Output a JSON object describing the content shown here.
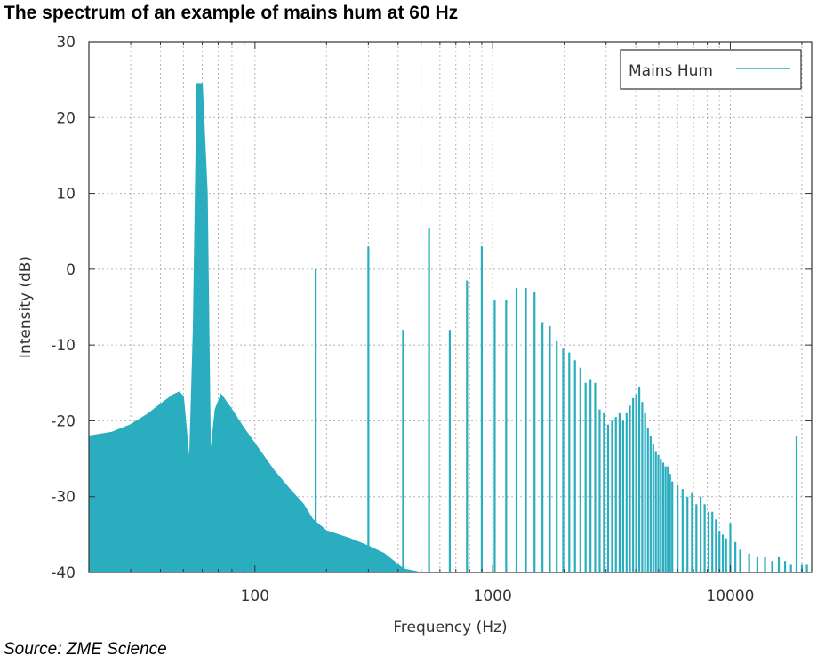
{
  "title": "The spectrum of an example of mains hum at 60 Hz",
  "source": "Source: ZME Science",
  "chart_data": {
    "type": "area",
    "xlabel": "Frequency (Hz)",
    "ylabel": "Intensity (dB)",
    "xscale": "log",
    "xlim": [
      20,
      22000
    ],
    "ylim": [
      -40,
      30
    ],
    "xticks": [
      100,
      1000,
      10000
    ],
    "xtick_labels": [
      "100",
      "1000",
      "10000"
    ],
    "yticks": [
      -40,
      -30,
      -20,
      -10,
      0,
      10,
      20,
      30
    ],
    "ytick_labels": [
      "-40",
      "-30",
      "-20",
      "-10",
      "0",
      "10",
      "20",
      "30"
    ],
    "grid": true,
    "legend_position": "top-right",
    "color": "#2aaebf",
    "series": [
      {
        "name": "Mains Hum",
        "baseline": [
          [
            20,
            -22
          ],
          [
            25,
            -21.5
          ],
          [
            30,
            -20.5
          ],
          [
            35,
            -19.2
          ],
          [
            40,
            -17.8
          ],
          [
            45,
            -16.6
          ],
          [
            48,
            -16.2
          ],
          [
            50,
            -16.8
          ],
          [
            53,
            -25.5
          ],
          [
            55,
            -8
          ],
          [
            57,
            24.5
          ],
          [
            60,
            24.5
          ],
          [
            63,
            10
          ],
          [
            65,
            -24.5
          ],
          [
            68,
            -18.5
          ],
          [
            72,
            -16.5
          ],
          [
            80,
            -18.5
          ],
          [
            90,
            -21
          ],
          [
            100,
            -23
          ],
          [
            120,
            -26.5
          ],
          [
            140,
            -29
          ],
          [
            160,
            -31
          ],
          [
            175,
            -33
          ],
          [
            200,
            -34.5
          ],
          [
            250,
            -35.5
          ],
          [
            300,
            -36.5
          ],
          [
            350,
            -37.5
          ],
          [
            420,
            -39.5
          ],
          [
            500,
            -40
          ],
          [
            22000,
            -40
          ]
        ],
        "peaks": [
          [
            180,
            0
          ],
          [
            300,
            3
          ],
          [
            420,
            -8
          ],
          [
            540,
            5.5
          ],
          [
            660,
            -8
          ],
          [
            780,
            -1.5
          ],
          [
            900,
            3
          ],
          [
            1020,
            -4
          ],
          [
            1140,
            -4
          ],
          [
            1260,
            -2.5
          ],
          [
            1380,
            -2.5
          ],
          [
            1500,
            -3
          ],
          [
            1620,
            -7
          ],
          [
            1740,
            -7.5
          ],
          [
            1860,
            -9.5
          ],
          [
            1980,
            -10.5
          ],
          [
            2100,
            -11
          ],
          [
            2220,
            -12
          ],
          [
            2340,
            -13
          ],
          [
            2460,
            -15
          ],
          [
            2580,
            -14.5
          ],
          [
            2700,
            -15
          ],
          [
            2820,
            -18.5
          ],
          [
            2940,
            -19
          ],
          [
            3060,
            -20.5
          ],
          [
            3180,
            -20
          ],
          [
            3300,
            -19.5
          ],
          [
            3420,
            -19
          ],
          [
            3540,
            -20
          ],
          [
            3660,
            -19
          ],
          [
            3780,
            -18
          ],
          [
            3900,
            -17
          ],
          [
            4020,
            -16.5
          ],
          [
            4140,
            -15.5
          ],
          [
            4260,
            -17.5
          ],
          [
            4380,
            -19
          ],
          [
            4500,
            -21
          ],
          [
            4620,
            -22
          ],
          [
            4740,
            -23
          ],
          [
            4860,
            -24
          ],
          [
            4980,
            -24.5
          ],
          [
            5100,
            -25
          ],
          [
            5220,
            -25.5
          ],
          [
            5340,
            -26
          ],
          [
            5460,
            -26
          ],
          [
            5580,
            -27
          ],
          [
            5700,
            -28
          ],
          [
            6000,
            -28.5
          ],
          [
            6300,
            -29
          ],
          [
            6600,
            -30
          ],
          [
            6900,
            -29.5
          ],
          [
            7200,
            -31
          ],
          [
            7500,
            -30
          ],
          [
            7800,
            -31
          ],
          [
            8100,
            -32
          ],
          [
            8400,
            -32
          ],
          [
            8700,
            -33
          ],
          [
            9000,
            -34.5
          ],
          [
            9300,
            -35
          ],
          [
            9600,
            -35.5
          ],
          [
            10000,
            -33.5
          ],
          [
            10500,
            -36
          ],
          [
            11000,
            -37
          ],
          [
            12000,
            -37.5
          ],
          [
            13000,
            -38
          ],
          [
            14000,
            -38
          ],
          [
            15000,
            -38.5
          ],
          [
            16000,
            -38
          ],
          [
            17000,
            -38.5
          ],
          [
            18000,
            -39
          ],
          [
            19000,
            -22
          ],
          [
            20000,
            -39
          ],
          [
            21000,
            -39
          ]
        ]
      }
    ]
  }
}
